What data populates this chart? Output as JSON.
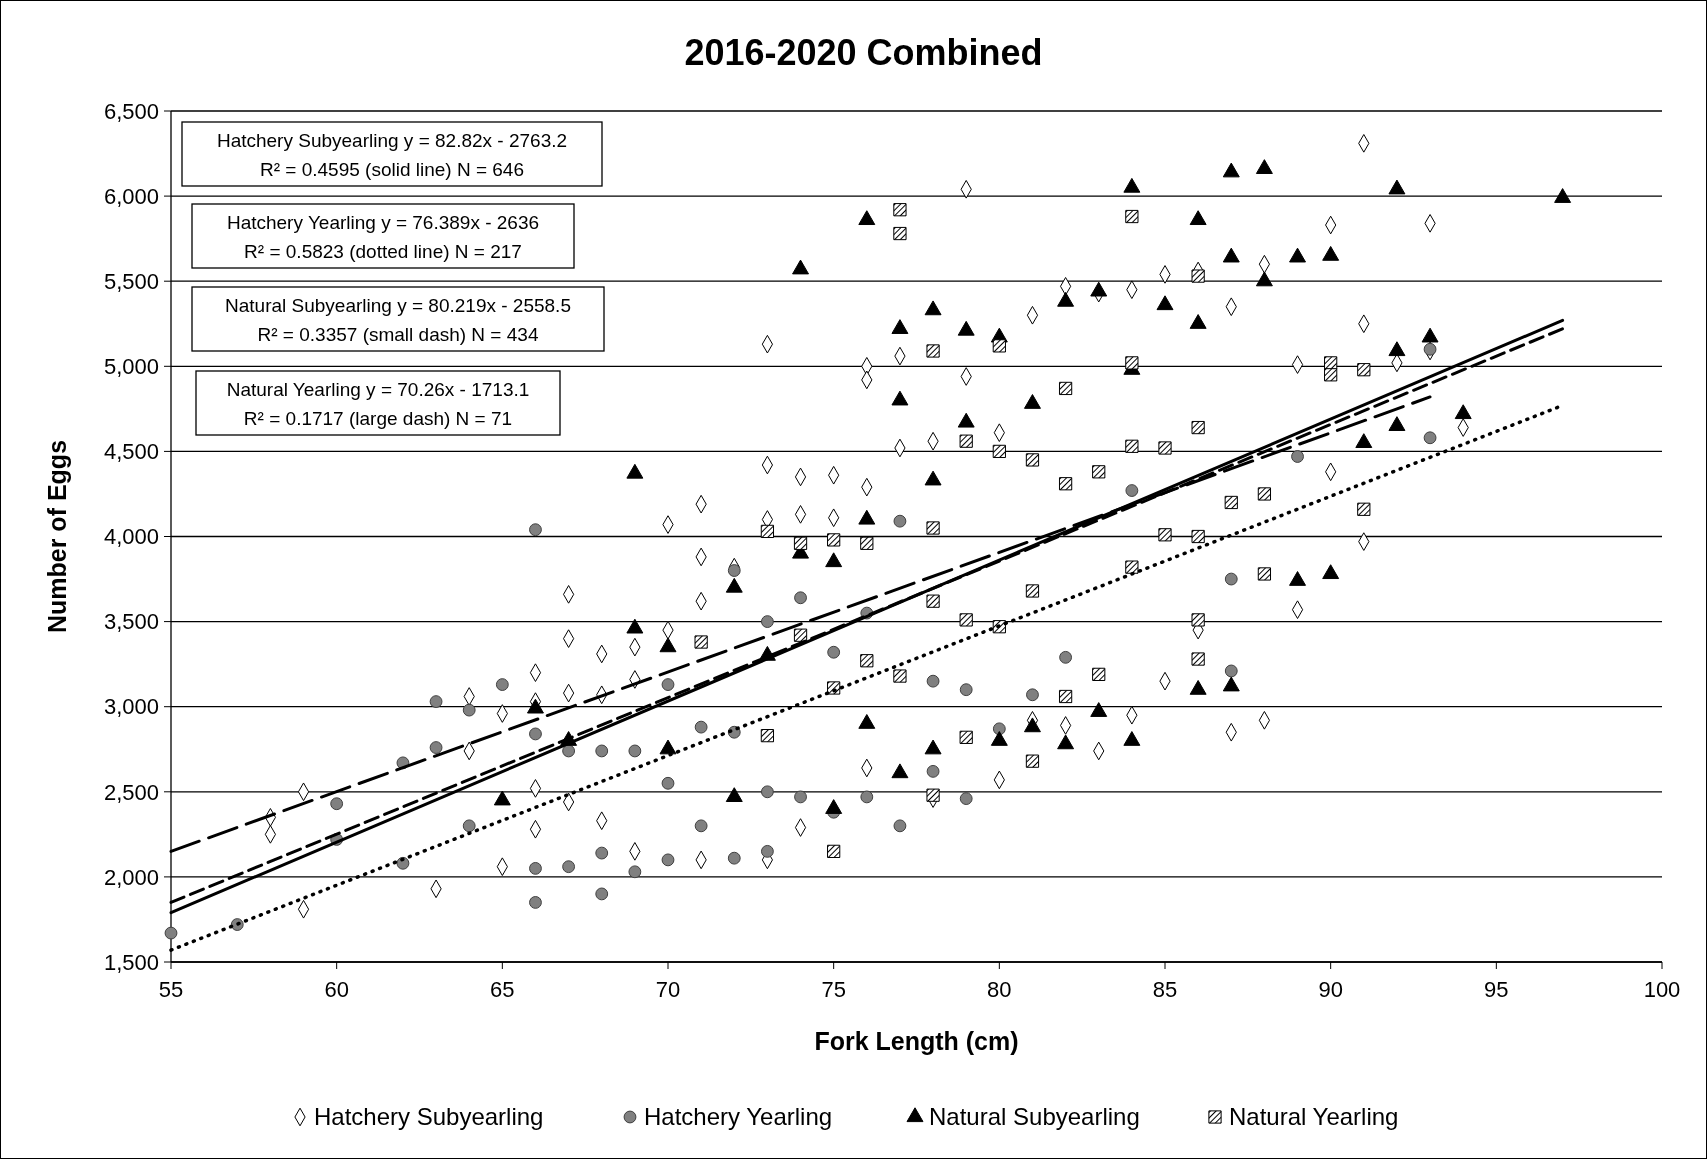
{
  "chart_data": {
    "type": "scatter",
    "title": "2016-2020 Combined",
    "xlabel": "Fork Length (cm)",
    "ylabel": "Number of Eggs",
    "xlim": [
      55,
      100
    ],
    "xticks": [
      55,
      60,
      65,
      70,
      75,
      80,
      85,
      90,
      95,
      100
    ],
    "ylim": [
      1500,
      6500
    ],
    "yticks": [
      {
        "value": 1500,
        "label": "1,500"
      },
      {
        "value": 2000,
        "label": "2,000"
      },
      {
        "value": 2500,
        "label": "2,500"
      },
      {
        "value": 3000,
        "label": "3,000"
      },
      {
        "value": 3500,
        "label": "3,500"
      },
      {
        "value": 4000,
        "label": "4,000"
      },
      {
        "value": 4500,
        "label": "4,500"
      },
      {
        "value": 5000,
        "label": "5,000"
      },
      {
        "value": 5500,
        "label": "5,500"
      },
      {
        "value": 6000,
        "label": "6,000"
      },
      {
        "value": 6500,
        "label": "6,500"
      }
    ],
    "grid": "y",
    "legend": "bottom",
    "annotations": [
      "Hatchery Subyearling y = 82.82x - 2763.2\nR² = 0.4595 (solid line) N = 646",
      "Hatchery Yearling y = 76.389x - 2636\nR² = 0.5823 (dotted line) N = 217",
      "Natural Subyearling y = 80.219x - 2558.5\nR² = 0.3357 (small dash) N = 434",
      "Natural Yearling y = 70.26x - 1713.1\nR² = 0.1717 (large dash) N = 71"
    ],
    "series": [
      {
        "name": "Hatchery Subyearling",
        "marker": "diamond",
        "color": "#ffffff",
        "x": [
          58,
          58,
          59,
          59,
          63,
          64,
          64,
          65,
          65,
          66,
          66,
          66,
          66,
          67,
          67,
          67,
          67,
          68,
          68,
          68,
          69,
          69,
          69,
          70,
          70,
          71,
          71,
          71,
          71,
          72,
          73,
          73,
          73,
          73,
          74,
          74,
          74,
          75,
          75,
          76,
          76,
          76,
          76,
          77,
          77,
          78,
          78,
          79,
          79,
          80,
          80,
          81,
          81,
          82,
          82,
          83,
          83,
          84,
          84,
          85,
          85,
          86,
          86,
          87,
          87,
          88,
          88,
          89,
          89,
          90,
          90,
          91,
          91,
          91,
          92,
          93,
          93,
          94
        ],
        "values": [
          2350,
          2250,
          2500,
          1810,
          1930,
          3060,
          2740,
          2960,
          2060,
          3200,
          3030,
          2520,
          2280,
          3660,
          3400,
          3080,
          2440,
          3310,
          3070,
          2330,
          3350,
          3160,
          2150,
          4070,
          3450,
          4190,
          3880,
          3620,
          2100,
          3820,
          5130,
          4420,
          4100,
          2100,
          4350,
          4130,
          2290,
          4360,
          4110,
          5000,
          4920,
          4290,
          2640,
          5060,
          4520,
          4560,
          2460,
          6040,
          4940,
          4610,
          2570,
          5300,
          2920,
          5470,
          2890,
          5430,
          2740,
          5450,
          2950,
          5540,
          3150,
          5560,
          3450,
          5350,
          2850,
          5600,
          2920,
          5010,
          3570,
          5830,
          4380,
          6310,
          5250,
          3970,
          5020,
          5840,
          5090,
          4640
        ]
      },
      {
        "name": "Hatchery Yearling",
        "marker": "circle",
        "color": "#808080",
        "x": [
          55,
          57,
          60,
          60,
          62,
          62,
          63,
          63,
          64,
          64,
          65,
          66,
          66,
          66,
          66,
          67,
          67,
          68,
          68,
          68,
          69,
          69,
          70,
          70,
          70,
          71,
          71,
          72,
          72,
          72,
          73,
          73,
          73,
          74,
          74,
          75,
          75,
          76,
          76,
          77,
          77,
          78,
          78,
          79,
          79,
          80,
          81,
          82,
          84,
          87,
          87,
          89,
          93,
          93
        ],
        "values": [
          1670,
          1720,
          2430,
          2220,
          2670,
          2080,
          3030,
          2760,
          2980,
          2300,
          3130,
          4040,
          2840,
          2050,
          1850,
          2740,
          2060,
          2740,
          2140,
          1900,
          2740,
          2030,
          3130,
          2550,
          2100,
          2880,
          2300,
          3800,
          2850,
          2110,
          3500,
          2500,
          2150,
          3640,
          2470,
          3320,
          2380,
          3550,
          2470,
          4090,
          2300,
          3150,
          2620,
          3100,
          2460,
          2870,
          3070,
          3290,
          4270,
          3750,
          3210,
          4470,
          4580,
          5100
        ]
      },
      {
        "name": "Natural Subyearling",
        "marker": "triangle",
        "color": "#000000",
        "x": [
          65,
          66,
          67,
          69,
          69,
          70,
          70,
          72,
          72,
          73,
          74,
          74,
          75,
          75,
          76,
          76,
          76,
          77,
          77,
          77,
          78,
          78,
          78,
          79,
          79,
          80,
          80,
          81,
          81,
          82,
          82,
          83,
          83,
          84,
          84,
          84,
          85,
          86,
          86,
          86,
          87,
          87,
          87,
          88,
          88,
          89,
          89,
          90,
          90,
          91,
          92,
          92,
          92,
          93,
          94,
          97
        ],
        "values": [
          2450,
          2990,
          2800,
          4370,
          3460,
          3350,
          2750,
          3700,
          2470,
          3300,
          5570,
          3900,
          3850,
          2400,
          5860,
          4100,
          2900,
          5220,
          4800,
          2610,
          5330,
          4330,
          2750,
          5210,
          4670,
          5170,
          2800,
          4780,
          2880,
          5380,
          2780,
          5440,
          2970,
          6050,
          4980,
          2800,
          5360,
          5860,
          5250,
          3100,
          6140,
          5640,
          3120,
          6160,
          5500,
          5640,
          3740,
          5650,
          3780,
          4550,
          6040,
          5090,
          4650,
          5170,
          4720,
          5990
        ]
      },
      {
        "name": "Natural Yearling",
        "marker": "square",
        "color": "#000000",
        "x": [
          71,
          73,
          73,
          74,
          74,
          75,
          75,
          75,
          76,
          76,
          77,
          77,
          77,
          78,
          78,
          78,
          78,
          79,
          79,
          79,
          80,
          80,
          80,
          81,
          81,
          81,
          82,
          82,
          82,
          83,
          83,
          84,
          84,
          84,
          84,
          85,
          85,
          86,
          86,
          86,
          86,
          86,
          87,
          88,
          88,
          90,
          90,
          91,
          91
        ],
        "values": [
          3380,
          4030,
          2830,
          3960,
          3420,
          3980,
          3110,
          2150,
          3960,
          3270,
          5920,
          5780,
          3180,
          5090,
          4050,
          3620,
          2480,
          4560,
          3510,
          2820,
          5120,
          4500,
          3470,
          4450,
          3680,
          2680,
          4870,
          4310,
          3060,
          4380,
          3190,
          5880,
          5020,
          4530,
          3820,
          4520,
          4010,
          5530,
          4640,
          4000,
          3510,
          3280,
          4200,
          4250,
          3780,
          5020,
          4950,
          4980,
          4160
        ]
      },
      {
        "type": "line",
        "line_style": "solid",
        "color": "#000000",
        "x": [
          55,
          97
        ],
        "values": [
          1790,
          5270
        ]
      },
      {
        "type": "line",
        "line_style": "dotted",
        "color": "#000000",
        "x": [
          55,
          97
        ],
        "values": [
          1570,
          4770
        ]
      },
      {
        "type": "line",
        "line_style": "dashed",
        "color": "#000000",
        "x": [
          55,
          97
        ],
        "values": [
          1850,
          5220
        ]
      },
      {
        "type": "line",
        "line_style": "dashed",
        "color": "#000000",
        "x": [
          55,
          93
        ],
        "values": [
          2150,
          4820
        ]
      }
    ]
  }
}
